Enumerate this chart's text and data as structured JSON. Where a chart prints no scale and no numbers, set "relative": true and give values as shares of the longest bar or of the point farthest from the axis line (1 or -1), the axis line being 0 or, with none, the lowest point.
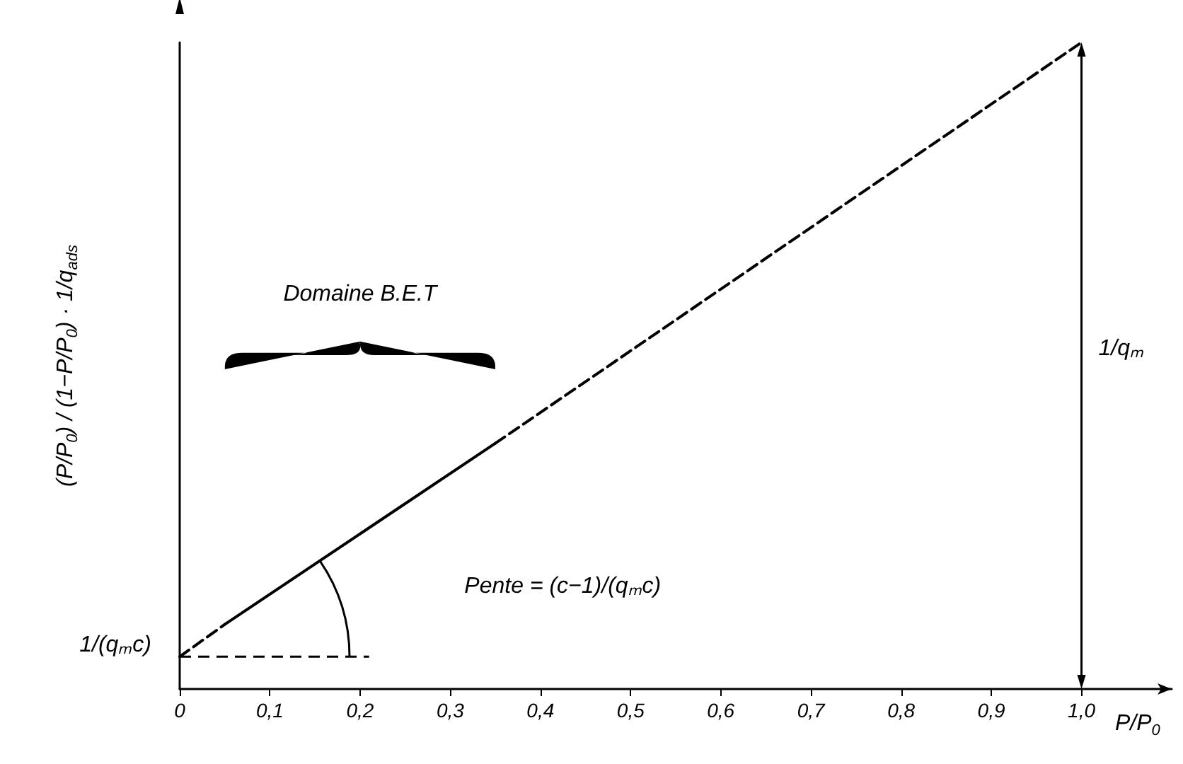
{
  "chart_data": {
    "type": "line",
    "relative": true,
    "xlabel": "P/P$_{0}$",
    "ylabel": "(P/P$_{0}$) / (1−P/P$_{0}$) · 1/q$_{ads}$",
    "xlim": [
      0,
      1.1
    ],
    "xticks": [
      0,
      {
        "value": 0.1,
        "label": "0,1"
      },
      {
        "value": 0.2,
        "label": "0,2"
      },
      {
        "value": 0.3,
        "label": "0,3"
      },
      {
        "value": 0.4,
        "label": "0,4"
      },
      {
        "value": 0.5,
        "label": "0,5"
      },
      {
        "value": 0.6,
        "label": "0,6"
      },
      {
        "value": 0.7,
        "label": "0,7"
      },
      {
        "value": 0.8,
        "label": "0,8"
      },
      {
        "value": 0.9,
        "label": "0,9"
      },
      {
        "value": 1,
        "label": "1,0"
      }
    ],
    "series": [
      {
        "color": "#000000",
        "line_style": "dashed",
        "x": [
          0,
          0.05
        ],
        "values": [
          0.05,
          0.1
        ]
      },
      {
        "color": "#000000",
        "line_style": "solid",
        "x": [
          0.05,
          0.35
        ],
        "values": [
          0.1,
          0.38
        ]
      },
      {
        "color": "#000000",
        "line_style": "dashed",
        "x": [
          0.35,
          1
        ],
        "values": [
          0.38,
          1
        ]
      }
    ],
    "annotations": [
      "Domaine B.E.T",
      "Pente = (c−1)/(qₘc)",
      "1/qₘ",
      "1/(qₘc)"
    ]
  }
}
